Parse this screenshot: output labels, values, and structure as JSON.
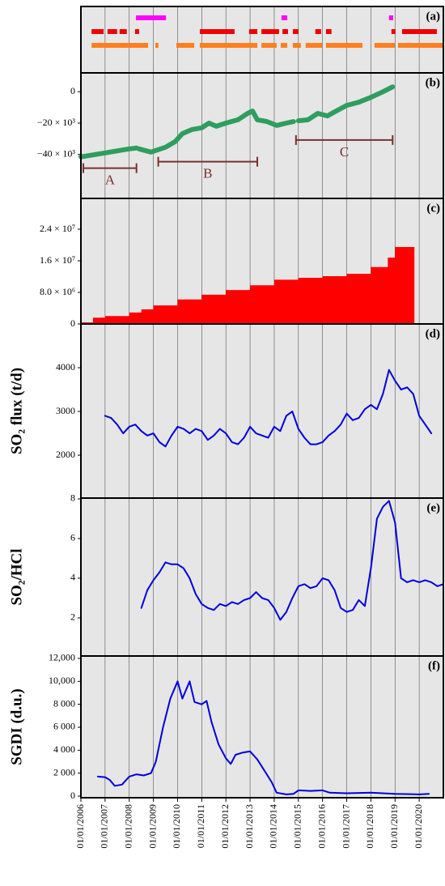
{
  "chart_data": [
    {
      "type": "timeline",
      "panel_label": "(a)",
      "series": [
        {
          "color": "#ff00ff",
          "segments": [
            [
              2008.28,
              2009.52
            ],
            [
              2014.3,
              2014.54
            ],
            [
              2018.75,
              2018.92
            ]
          ]
        },
        {
          "color": "#ee0000",
          "segments": [
            [
              2006.44,
              2006.94
            ],
            [
              2007.1,
              2007.5
            ],
            [
              2007.6,
              2007.9
            ],
            [
              2008.24,
              2008.41
            ],
            [
              2010.92,
              2012.36
            ],
            [
              2012.96,
              2013.3
            ],
            [
              2013.47,
              2014.2
            ],
            [
              2014.34,
              2014.57
            ],
            [
              2014.77,
              2015.0
            ],
            [
              2015.7,
              2015.94
            ],
            [
              2016.14,
              2016.37
            ],
            [
              2018.85,
              2019.02
            ],
            [
              2019.29,
              2020.73
            ]
          ]
        },
        {
          "color": "#ff7f1e",
          "segments": [
            [
              2006.44,
              2008.78
            ],
            [
              2009.08,
              2009.21
            ],
            [
              2009.95,
              2010.69
            ],
            [
              2010.92,
              2013.3
            ],
            [
              2013.47,
              2014.1
            ],
            [
              2014.27,
              2014.54
            ],
            [
              2014.77,
              2015.1
            ],
            [
              2015.3,
              2015.98
            ],
            [
              2016.14,
              2017.65
            ],
            [
              2018.15,
              2018.99
            ],
            [
              2019.12,
              2021.0
            ]
          ]
        }
      ]
    },
    {
      "type": "line",
      "panel_label": "(b)",
      "color": "#2e9e5e",
      "x": [
        2006.0,
        2007.0,
        2008.0,
        2008.3,
        null,
        2008.4,
        2008.9,
        2009.5,
        2009.9,
        2010.2,
        2010.6,
        2011.0,
        2011.3,
        2011.6,
        2012.0,
        2012.5,
        2012.9,
        2013.1,
        2013.3,
        2013.7,
        2014.1,
        2014.5,
        2014.8,
        null,
        2015.0,
        2015.4,
        2015.8,
        2016.2,
        2016.5,
        2017.0,
        2017.5,
        2018.0,
        2018.5,
        2018.9
      ],
      "values": [
        -41500,
        -39000,
        -36400,
        -35900,
        null,
        -36400,
        -38500,
        -35400,
        -31800,
        -26700,
        -24100,
        -23000,
        -20000,
        -22000,
        -20000,
        -17900,
        -13800,
        -12300,
        -17900,
        -19000,
        -21500,
        -20000,
        -19000,
        null,
        -18500,
        -17900,
        -13800,
        -15400,
        -12800,
        -8700,
        -6700,
        -3600,
        0,
        3100
      ],
      "ylim": [
        -68000,
        12000
      ],
      "yticks": [
        0,
        {
          "value": -20000,
          "label": "−20 × 10³"
        },
        {
          "value": -40000,
          "label": "−40 × 10³"
        }
      ],
      "annotation_color": "#7a3030",
      "annotations": [
        {
          "text": "A",
          "x": [
            2006.1,
            2008.3
          ],
          "y": -48700
        },
        {
          "text": "B",
          "x": [
            2009.2,
            2013.3
          ],
          "y": -44600
        },
        {
          "text": "C",
          "x": [
            2014.9,
            2018.9
          ],
          "y": -30800
        }
      ]
    },
    {
      "type": "area",
      "panel_label": "(c)",
      "color": "#ff0000",
      "x": [
        2006.0,
        2006.5,
        2007.0,
        2008.0,
        2008.5,
        2009.0,
        2010.0,
        2011.0,
        2012.0,
        2013.0,
        2014.0,
        2015.0,
        2016.0,
        2017.0,
        2018.0,
        2018.7,
        2019.0,
        2019.8
      ],
      "values": [
        400000,
        1600000,
        2000000,
        2900000,
        3700000,
        4700000,
        6200000,
        7400000,
        8600000,
        9800000,
        11200000,
        11700000,
        12100000,
        12700000,
        14400000,
        16800000,
        19500000,
        21300000
      ],
      "ylim": [
        0,
        31800000
      ],
      "yticks": [
        0,
        {
          "value": 8000000,
          "label": "8.0 × 10⁶"
        },
        {
          "value": 16000000,
          "label": "1.6 × 10⁷"
        },
        {
          "value": 24000000,
          "label": "2.4 × 10⁷"
        }
      ]
    },
    {
      "type": "line",
      "panel_label": "(d)",
      "ylabel": "SO₂ flux (t/d)",
      "color": "#0000dd",
      "x": [
        2007.0,
        2007.25,
        2007.5,
        2007.75,
        2008.0,
        2008.25,
        2008.5,
        2008.75,
        2009.0,
        2009.25,
        2009.5,
        2009.75,
        2010.0,
        2010.25,
        2010.5,
        2010.75,
        2011.0,
        2011.25,
        2011.5,
        2011.75,
        2012.0,
        2012.25,
        2012.5,
        2012.75,
        2013.0,
        2013.25,
        2013.5,
        2013.75,
        2014.0,
        2014.25,
        2014.5,
        2014.75,
        2015.0,
        2015.25,
        2015.5,
        2015.75,
        2016.0,
        2016.25,
        2016.5,
        2016.75,
        2017.0,
        2017.25,
        2017.5,
        2017.75,
        2018.0,
        2018.25,
        2018.5,
        2018.75,
        2019.0,
        2019.25,
        2019.5,
        2019.75,
        2020.0,
        2020.25,
        2020.5
      ],
      "values": [
        2900,
        2850,
        2700,
        2500,
        2650,
        2700,
        2550,
        2450,
        2500,
        2300,
        2200,
        2450,
        2650,
        2600,
        2500,
        2600,
        2550,
        2350,
        2450,
        2600,
        2500,
        2300,
        2250,
        2400,
        2650,
        2500,
        2450,
        2400,
        2650,
        2550,
        2900,
        3000,
        2600,
        2400,
        2250,
        2250,
        2300,
        2450,
        2550,
        2700,
        2950,
        2800,
        2850,
        3050,
        3150,
        3050,
        3400,
        3950,
        3700,
        3500,
        3550,
        3400,
        2900,
        2700,
        2500
      ],
      "ylim": [
        1020,
        5000
      ],
      "yticks": [
        2000,
        3000,
        4000
      ]
    },
    {
      "type": "line",
      "panel_label": "(e)",
      "ylabel": "SO₂/HCl",
      "color": "#0000dd",
      "x": [
        2008.5,
        2008.75,
        2009.0,
        2009.25,
        2009.5,
        2009.75,
        2010.0,
        2010.25,
        2010.5,
        2010.75,
        2011.0,
        2011.25,
        2011.5,
        2011.75,
        2012.0,
        2012.25,
        2012.5,
        2012.75,
        2013.0,
        2013.25,
        2013.5,
        2013.75,
        2014.0,
        2014.25,
        2014.5,
        2014.75,
        2015.0,
        2015.25,
        2015.5,
        2015.75,
        2016.0,
        2016.25,
        2016.5,
        2016.75,
        2017.0,
        2017.25,
        2017.5,
        2017.75,
        2018.0,
        2018.25,
        2018.5,
        2018.75,
        2019.0,
        2019.25,
        2019.5,
        2019.75,
        2020.0,
        2020.25,
        2020.5,
        2020.75,
        2021.0
      ],
      "values": [
        2.5,
        3.4,
        3.9,
        4.3,
        4.8,
        4.7,
        4.7,
        4.5,
        4.0,
        3.2,
        2.7,
        2.5,
        2.4,
        2.7,
        2.6,
        2.8,
        2.7,
        2.9,
        3.0,
        3.3,
        3.0,
        2.9,
        2.5,
        1.9,
        2.3,
        3.0,
        3.6,
        3.7,
        3.5,
        3.6,
        4.0,
        3.9,
        3.4,
        2.5,
        2.3,
        2.4,
        2.9,
        2.6,
        4.5,
        7.0,
        7.6,
        7.9,
        6.8,
        4.0,
        3.8,
        3.9,
        3.8,
        3.9,
        3.8,
        3.6,
        3.7
      ],
      "ylim": [
        0.08,
        8.04
      ],
      "yticks": [
        2,
        4,
        6,
        8
      ]
    },
    {
      "type": "line",
      "panel_label": "(f)",
      "ylabel": "SGDI (d.u.)",
      "color": "#0000dd",
      "x": [
        2006.7,
        2007.0,
        2007.2,
        2007.4,
        2007.7,
        2008.0,
        2008.3,
        2008.6,
        2008.9,
        2009.1,
        2009.4,
        2009.7,
        2010.0,
        2010.2,
        2010.5,
        2010.7,
        2011.0,
        2011.2,
        2011.4,
        2011.7,
        2012.0,
        2012.2,
        2012.4,
        2012.7,
        2013.0,
        2013.3,
        2013.6,
        2013.9,
        2014.1,
        2014.5,
        2014.8,
        2015.0,
        2015.5,
        2016.0,
        2016.3,
        2017.0,
        2018.0,
        2019.0,
        2020.0,
        2020.4
      ],
      "values": [
        1700,
        1650,
        1400,
        900,
        1000,
        1700,
        1900,
        1800,
        2000,
        3000,
        6000,
        8500,
        10000,
        8500,
        10000,
        8200,
        8000,
        8300,
        6500,
        4500,
        3300,
        2800,
        3600,
        3800,
        3900,
        3200,
        2200,
        1200,
        300,
        150,
        200,
        500,
        450,
        500,
        300,
        250,
        300,
        200,
        150,
        200
      ],
      "ylim": [
        -140,
        12210
      ],
      "yticks": [
        0,
        {
          "value": 2000,
          "label": "2 000"
        },
        {
          "value": 4000,
          "label": "4 000"
        },
        {
          "value": 6000,
          "label": "6 000"
        },
        {
          "value": 8000,
          "label": "8 000"
        },
        {
          "value": 10000,
          "label": "10,000"
        },
        {
          "value": 12000,
          "label": "12,000"
        }
      ],
      "xlim": [
        2006,
        2021
      ],
      "xticks": [
        {
          "value": 2006,
          "label": "01/01/2006"
        },
        {
          "value": 2007,
          "label": "01/01/2007"
        },
        {
          "value": 2008,
          "label": "01/01/2008"
        },
        {
          "value": 2009,
          "label": "01/01/2009"
        },
        {
          "value": 2010,
          "label": "01/01/2010"
        },
        {
          "value": 2011,
          "label": "01/01/2011"
        },
        {
          "value": 2012,
          "label": "01/01/2012"
        },
        {
          "value": 2013,
          "label": "01/01/2013"
        },
        {
          "value": 2014,
          "label": "01/01/2014"
        },
        {
          "value": 2015,
          "label": "01/01/2015"
        },
        {
          "value": 2016,
          "label": "01/01/2016"
        },
        {
          "value": 2017,
          "label": "01/01/2017"
        },
        {
          "value": 2018,
          "label": "01/01/2018"
        },
        {
          "value": 2019,
          "label": "01/01/2019"
        },
        {
          "value": 2020,
          "label": "01/01/2020"
        }
      ]
    }
  ]
}
